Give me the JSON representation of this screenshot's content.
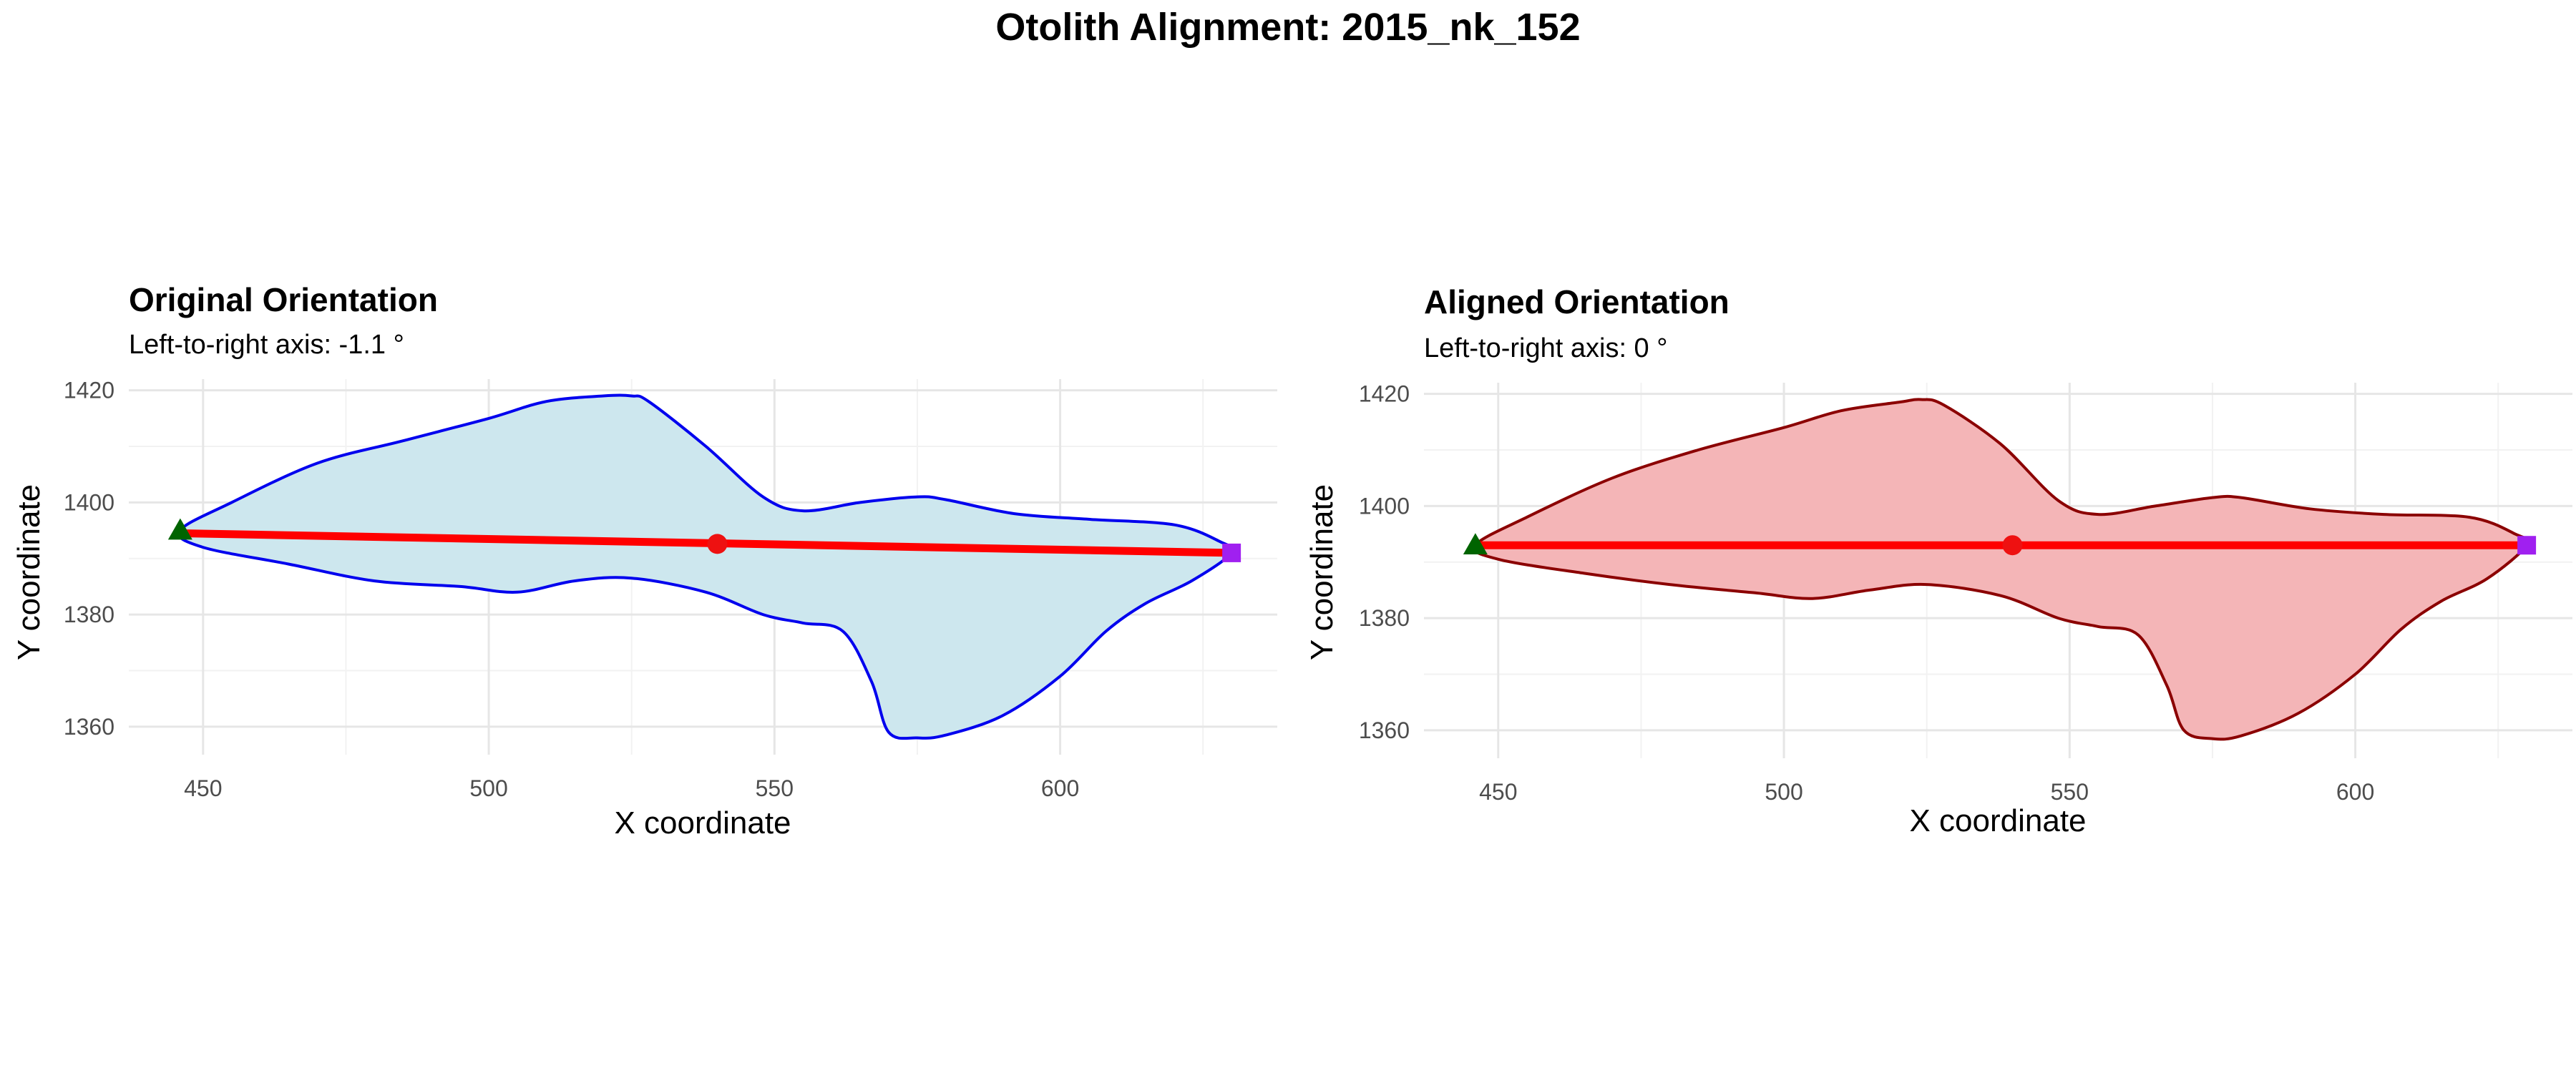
{
  "title": "Otolith Alignment: 2015_nk_152",
  "chart_data": [
    {
      "type": "line",
      "title": "Original Orientation",
      "subtitle": "Left-to-right axis: -1.1 °",
      "xlabel": "X coordinate",
      "ylabel": "Y coordinate",
      "xlim": [
        437,
        638
      ],
      "ylim": [
        1355,
        1422
      ],
      "x_ticks": [
        450,
        500,
        550,
        600
      ],
      "y_ticks": [
        1360,
        1380,
        1400,
        1420
      ],
      "x_tick_labels": [
        "450",
        "500",
        "550",
        "600"
      ],
      "y_tick_labels": [
        "1360",
        "1380",
        "1400",
        "1420"
      ],
      "grid": true,
      "fill_color": "#cde7ee",
      "outline_color": "#0000ee",
      "axis_line_color": "#ff0000",
      "start_marker_color": "#006400",
      "center_marker_color": "#ee1111",
      "end_marker_color": "#a020f0",
      "outline": [
        [
          446,
          1395
        ],
        [
          455,
          1400
        ],
        [
          470,
          1407
        ],
        [
          485,
          1411
        ],
        [
          500,
          1415
        ],
        [
          510,
          1418
        ],
        [
          520,
          1419
        ],
        [
          525,
          1419
        ],
        [
          528,
          1418
        ],
        [
          538,
          1410
        ],
        [
          548,
          1401
        ],
        [
          555,
          1398.5
        ],
        [
          565,
          1400
        ],
        [
          575,
          1401
        ],
        [
          580,
          1400.5
        ],
        [
          592,
          1398
        ],
        [
          605,
          1397
        ],
        [
          620,
          1396
        ],
        [
          628,
          1393
        ],
        [
          630,
          1391
        ],
        [
          623,
          1386
        ],
        [
          615,
          1382
        ],
        [
          608,
          1377
        ],
        [
          600,
          1369
        ],
        [
          590,
          1362
        ],
        [
          580,
          1358.5
        ],
        [
          575,
          1358
        ],
        [
          570,
          1359
        ],
        [
          567,
          1368
        ],
        [
          562,
          1377
        ],
        [
          555,
          1378.5
        ],
        [
          548,
          1380
        ],
        [
          538,
          1384
        ],
        [
          525,
          1386.5
        ],
        [
          515,
          1386
        ],
        [
          505,
          1384
        ],
        [
          495,
          1385
        ],
        [
          480,
          1386
        ],
        [
          465,
          1389
        ],
        [
          450,
          1392
        ],
        [
          446,
          1395
        ]
      ],
      "axis_line": [
        [
          446,
          1394.5
        ],
        [
          630,
          1391
        ]
      ],
      "start_point": [
        446,
        1395
      ],
      "center_point": [
        540,
        1392.6
      ],
      "end_point": [
        630,
        1391
      ]
    },
    {
      "type": "line",
      "title": "Aligned Orientation",
      "subtitle": "Left-to-right axis: 0 °",
      "xlabel": "X coordinate",
      "ylabel": "Y coordinate",
      "xlim": [
        437,
        638
      ],
      "ylim": [
        1355,
        1422
      ],
      "x_ticks": [
        450,
        500,
        550,
        600
      ],
      "y_ticks": [
        1360,
        1380,
        1400,
        1420
      ],
      "x_tick_labels": [
        "450",
        "500",
        "550",
        "600"
      ],
      "y_tick_labels": [
        "1360",
        "1380",
        "1400",
        "1420"
      ],
      "grid": true,
      "fill_color": "#f4b5b7",
      "outline_color": "#8b0000",
      "axis_line_color": "#ff0000",
      "start_marker_color": "#006400",
      "center_marker_color": "#ee1111",
      "end_marker_color": "#a020f0",
      "outline": [
        [
          446,
          1393
        ],
        [
          455,
          1398
        ],
        [
          470,
          1405
        ],
        [
          485,
          1410
        ],
        [
          500,
          1414
        ],
        [
          510,
          1417
        ],
        [
          520,
          1418.5
        ],
        [
          524,
          1419
        ],
        [
          528,
          1418
        ],
        [
          538,
          1411
        ],
        [
          548,
          1401
        ],
        [
          555,
          1398.5
        ],
        [
          565,
          1400
        ],
        [
          575,
          1401.5
        ],
        [
          580,
          1401.5
        ],
        [
          592,
          1399.5
        ],
        [
          605,
          1398.5
        ],
        [
          620,
          1398
        ],
        [
          628,
          1395
        ],
        [
          630,
          1393
        ],
        [
          623,
          1387
        ],
        [
          615,
          1383
        ],
        [
          608,
          1378
        ],
        [
          600,
          1370
        ],
        [
          590,
          1363
        ],
        [
          580,
          1359
        ],
        [
          575,
          1358.5
        ],
        [
          570,
          1360
        ],
        [
          567,
          1368
        ],
        [
          562,
          1377
        ],
        [
          555,
          1378.5
        ],
        [
          548,
          1380
        ],
        [
          538,
          1384
        ],
        [
          525,
          1386
        ],
        [
          515,
          1385
        ],
        [
          505,
          1383.5
        ],
        [
          495,
          1384.5
        ],
        [
          480,
          1386
        ],
        [
          465,
          1388
        ],
        [
          450,
          1390.5
        ],
        [
          446,
          1393
        ]
      ],
      "axis_line": [
        [
          446,
          1393
        ],
        [
          630,
          1393
        ]
      ],
      "start_point": [
        446,
        1393
      ],
      "center_point": [
        540,
        1393
      ],
      "end_point": [
        630,
        1393
      ]
    }
  ]
}
